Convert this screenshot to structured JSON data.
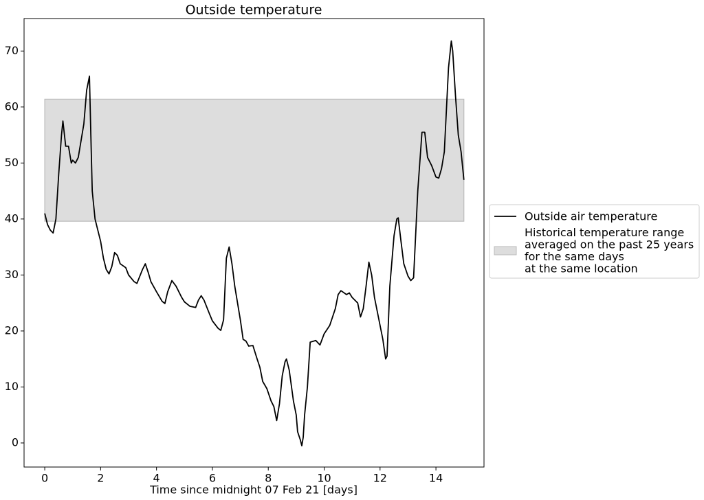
{
  "chart_data": {
    "type": "line",
    "title": "Outside temperature",
    "x_label": "Time since midnight 07 Feb 21 [days]",
    "xlim": [
      -0.74,
      15.72
    ],
    "ylim": [
      -4.3,
      75.8
    ],
    "xticks": [
      0,
      2,
      4,
      6,
      8,
      10,
      12,
      14
    ],
    "yticks": [
      0,
      10,
      20,
      30,
      40,
      50,
      60,
      70
    ],
    "grid": false,
    "legend": "right",
    "bands": [
      {
        "name": "Historical temperature range\naveraged on the past 25 years\nfor the same days\nat the same location",
        "color": "#dddddd",
        "x": [
          0,
          15
        ],
        "y": [
          39.6,
          61.4
        ]
      }
    ],
    "series": [
      {
        "name": "Outside air temperature",
        "color": "#000000",
        "x": [
          0,
          0.1,
          0.2,
          0.3,
          0.4,
          0.5,
          0.6,
          0.65,
          0.75,
          0.85,
          0.95,
          1.0,
          1.1,
          1.2,
          1.3,
          1.4,
          1.5,
          1.6,
          1.65,
          1.7,
          1.8,
          1.9,
          2.0,
          2.1,
          2.2,
          2.3,
          2.4,
          2.5,
          2.6,
          2.7,
          2.9,
          3.0,
          3.2,
          3.3,
          3.5,
          3.6,
          3.7,
          3.8,
          4.0,
          4.2,
          4.3,
          4.4,
          4.55,
          4.7,
          4.9,
          5.0,
          5.2,
          5.4,
          5.5,
          5.6,
          5.7,
          5.9,
          6.0,
          6.2,
          6.3,
          6.4,
          6.5,
          6.6,
          6.7,
          6.8,
          7.0,
          7.1,
          7.2,
          7.3,
          7.45,
          7.6,
          7.7,
          7.8,
          7.95,
          8.1,
          8.2,
          8.3,
          8.4,
          8.5,
          8.6,
          8.65,
          8.75,
          8.9,
          9.0,
          9.05,
          9.15,
          9.2,
          9.25,
          9.3,
          9.4,
          9.5,
          9.7,
          9.85,
          10.0,
          10.2,
          10.4,
          10.5,
          10.6,
          10.8,
          10.9,
          11.0,
          11.2,
          11.3,
          11.4,
          11.5,
          11.6,
          11.7,
          11.8,
          11.9,
          12.0,
          12.1,
          12.2,
          12.25,
          12.35,
          12.5,
          12.6,
          12.65,
          12.75,
          12.85,
          13.0,
          13.1,
          13.2,
          13.35,
          13.5,
          13.6,
          13.7,
          13.85,
          14.0,
          14.1,
          14.2,
          14.3,
          14.45,
          14.55,
          14.6,
          14.7,
          14.8,
          14.9,
          15.0
        ],
        "values": [
          41,
          39,
          38,
          37.5,
          40,
          48,
          55,
          57.5,
          53,
          53,
          50,
          50.5,
          50,
          51,
          54,
          57,
          63,
          65.5,
          55,
          45,
          40,
          38,
          36,
          33,
          31,
          30.2,
          31.5,
          34,
          33.5,
          32,
          31.3,
          30,
          28.8,
          28.5,
          31,
          32,
          30.5,
          28.8,
          27,
          25.3,
          24.9,
          27,
          29,
          28,
          26,
          25.2,
          24.4,
          24.2,
          25.5,
          26.3,
          25.5,
          23,
          21.8,
          20.5,
          20.1,
          22,
          33,
          35,
          32,
          28,
          22,
          18.5,
          18.2,
          17.3,
          17.4,
          15,
          13.5,
          11,
          9.7,
          7.5,
          6.5,
          4,
          7,
          12,
          14.5,
          15,
          13,
          7.5,
          5,
          2,
          0.5,
          -0.5,
          1,
          5,
          10,
          18,
          18.3,
          17.5,
          19.5,
          21,
          24,
          26.5,
          27.2,
          26.5,
          26.8,
          26,
          25,
          22.5,
          24,
          28,
          32.3,
          30,
          26,
          23.5,
          21,
          18.5,
          15,
          15.5,
          28,
          37,
          40,
          40.2,
          36,
          32,
          29.8,
          29,
          29.5,
          45,
          55.5,
          55.5,
          51,
          49.5,
          47.5,
          47.3,
          49,
          52,
          67,
          71.8,
          70,
          62,
          55,
          52,
          47
        ]
      }
    ]
  }
}
